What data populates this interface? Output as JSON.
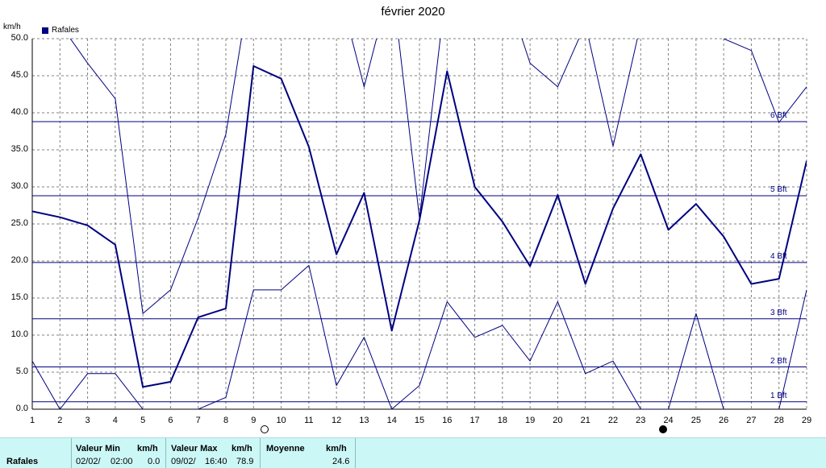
{
  "header": {
    "title": "février 2020",
    "unit": "km/h",
    "legend": "Rafales"
  },
  "chart_data": {
    "type": "line",
    "title": "février 2020",
    "ylabel": "km/h",
    "ylim": [
      0,
      50
    ],
    "xlim": [
      1,
      29
    ],
    "y_ticks": [
      "0.0",
      "5.0",
      "10.0",
      "15.0",
      "20.0",
      "25.0",
      "30.0",
      "35.0",
      "40.0",
      "45.0",
      "50.0"
    ],
    "x_ticks": [
      "1",
      "2",
      "3",
      "4",
      "5",
      "6",
      "7",
      "8",
      "9",
      "10",
      "11",
      "12",
      "13",
      "14",
      "15",
      "16",
      "17",
      "18",
      "19",
      "20",
      "21",
      "22",
      "23",
      "24",
      "25",
      "26",
      "27",
      "28",
      "29"
    ],
    "grid": true,
    "legend_position": "top-left",
    "colors": {
      "series": "#000080",
      "grid": "#808080"
    },
    "series": [
      {
        "name": "Rafales",
        "x": [
          1,
          2,
          3,
          4,
          5,
          6,
          7,
          8,
          9,
          10,
          11,
          12,
          13,
          14,
          15,
          16,
          17,
          18,
          19,
          20,
          21,
          22,
          23,
          24,
          25,
          26,
          27,
          28,
          29
        ],
        "values": [
          26.7,
          25.9,
          24.8,
          22.2,
          3.0,
          3.7,
          12.4,
          13.6,
          46.3,
          44.6,
          35.4,
          20.9,
          29.2,
          10.6,
          25.5,
          45.6,
          30.0,
          25.3,
          19.3,
          28.9,
          16.9,
          27.1,
          34.4,
          24.2,
          27.7,
          23.3,
          16.9,
          17.6,
          33.5
        ]
      },
      {
        "x": [
          1,
          2,
          3,
          4,
          5,
          6,
          7,
          8,
          9,
          10,
          11,
          12,
          13,
          14,
          15,
          16,
          17,
          18,
          19,
          20,
          21,
          22,
          23,
          24,
          25,
          26,
          27,
          28,
          29
        ],
        "values": [
          6.5,
          0,
          4.8,
          4.8,
          0,
          null,
          0,
          1.6,
          16.1,
          16.1,
          19.4,
          3.2,
          9.7,
          0,
          3.2,
          14.5,
          9.7,
          11.3,
          6.5,
          14.5,
          4.8,
          6.5,
          0,
          0,
          12.9,
          0,
          null,
          0,
          16.1
        ]
      },
      {
        "x": [
          1,
          2,
          3,
          4,
          5,
          6,
          7,
          8,
          9,
          10,
          11,
          12,
          13,
          14,
          15,
          16,
          17,
          18,
          19,
          20,
          21,
          22,
          23,
          24,
          25,
          26,
          27,
          28,
          29
        ],
        "values": [
          null,
          52,
          46.7,
          41.9,
          12.9,
          16.1,
          25.8,
          37.1,
          60,
          null,
          null,
          58,
          43.5,
          58,
          25.8,
          58,
          null,
          58,
          46.7,
          43.5,
          52,
          35.5,
          52,
          null,
          null,
          50,
          48.4,
          38.7,
          43.5
        ]
      }
    ],
    "reference_lines": [
      {
        "label": "1 Bft",
        "value": 1
      },
      {
        "label": "2 Bft",
        "value": 5.7
      },
      {
        "label": "3 Bft",
        "value": 12.2
      },
      {
        "label": "4 Bft",
        "value": 19.8
      },
      {
        "label": "5 Bft",
        "value": 28.8
      },
      {
        "label": "6 Bft",
        "value": 38.8
      }
    ],
    "moon_phases": [
      {
        "phase": "full",
        "day": 9.4
      },
      {
        "phase": "new",
        "day": 23.8
      }
    ]
  },
  "stats": {
    "row_label": "Rafales",
    "min": {
      "header": "Valeur Min",
      "unit": "km/h",
      "date": "02/02/",
      "time": "02:00",
      "value": "0.0"
    },
    "max": {
      "header": "Valeur Max",
      "unit": "km/h",
      "date": "09/02/",
      "time": "16:40",
      "value": "78.9"
    },
    "mean": {
      "header": "Moyenne",
      "unit": "km/h",
      "value": "24.6"
    }
  }
}
